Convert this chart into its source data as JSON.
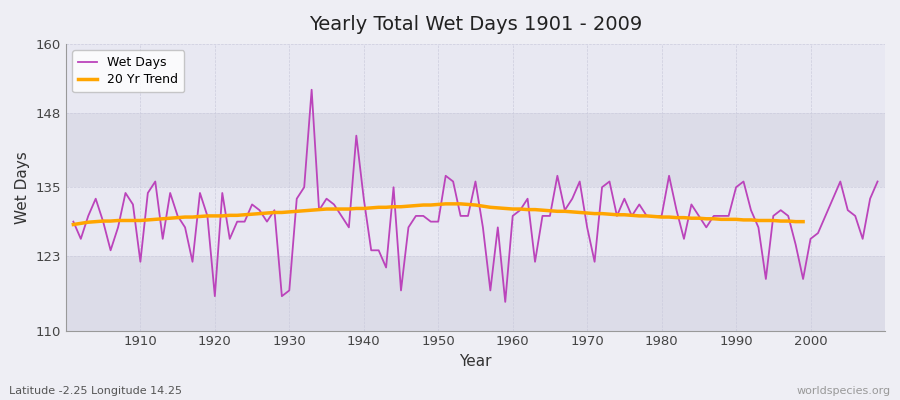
{
  "title": "Yearly Total Wet Days 1901 - 2009",
  "xlabel": "Year",
  "ylabel": "Wet Days",
  "subtitle": "Latitude -2.25 Longitude 14.25",
  "watermark": "worldspecies.org",
  "ylim": [
    110,
    160
  ],
  "yticks": [
    110,
    123,
    135,
    148,
    160
  ],
  "years": [
    1901,
    1902,
    1903,
    1904,
    1905,
    1906,
    1907,
    1908,
    1909,
    1910,
    1911,
    1912,
    1913,
    1914,
    1915,
    1916,
    1917,
    1918,
    1919,
    1920,
    1921,
    1922,
    1923,
    1924,
    1925,
    1926,
    1927,
    1928,
    1929,
    1930,
    1931,
    1932,
    1933,
    1934,
    1935,
    1936,
    1937,
    1938,
    1939,
    1940,
    1941,
    1942,
    1943,
    1944,
    1945,
    1946,
    1947,
    1948,
    1949,
    1950,
    1951,
    1952,
    1953,
    1954,
    1955,
    1956,
    1957,
    1958,
    1959,
    1960,
    1961,
    1962,
    1963,
    1964,
    1965,
    1966,
    1967,
    1968,
    1969,
    1970,
    1971,
    1972,
    1973,
    1974,
    1975,
    1976,
    1977,
    1978,
    1979,
    1980,
    1981,
    1982,
    1983,
    1984,
    1985,
    1986,
    1987,
    1988,
    1989,
    1990,
    1991,
    1992,
    1993,
    1994,
    1995,
    1996,
    1997,
    1998,
    1999,
    2000,
    2001,
    2002,
    2003,
    2004,
    2005,
    2006,
    2007,
    2008,
    2009
  ],
  "wet_days": [
    129,
    126,
    130,
    133,
    129,
    124,
    128,
    134,
    132,
    122,
    134,
    136,
    126,
    134,
    130,
    128,
    122,
    134,
    130,
    116,
    134,
    126,
    129,
    129,
    132,
    131,
    129,
    131,
    116,
    117,
    133,
    135,
    152,
    131,
    133,
    132,
    130,
    128,
    144,
    133,
    124,
    124,
    121,
    135,
    117,
    128,
    130,
    130,
    129,
    129,
    137,
    136,
    130,
    130,
    136,
    128,
    117,
    128,
    115,
    130,
    131,
    133,
    122,
    130,
    130,
    137,
    131,
    133,
    136,
    128,
    122,
    135,
    136,
    130,
    133,
    130,
    132,
    130,
    130,
    130,
    137,
    131,
    126,
    132,
    130,
    128,
    130,
    130,
    130,
    135,
    136,
    131,
    128,
    119,
    130,
    131,
    130,
    125,
    119,
    126,
    127,
    130,
    133,
    136,
    131,
    130,
    126,
    133,
    136
  ],
  "trend": [
    128.5,
    128.7,
    128.9,
    129.0,
    129.1,
    129.1,
    129.2,
    129.2,
    129.2,
    129.2,
    129.3,
    129.4,
    129.5,
    129.6,
    129.7,
    129.8,
    129.8,
    129.9,
    130.0,
    130.0,
    130.0,
    130.1,
    130.1,
    130.2,
    130.3,
    130.4,
    130.5,
    130.6,
    130.6,
    130.7,
    130.8,
    130.9,
    131.0,
    131.1,
    131.2,
    131.2,
    131.2,
    131.2,
    131.3,
    131.3,
    131.4,
    131.5,
    131.5,
    131.6,
    131.6,
    131.7,
    131.8,
    131.9,
    131.9,
    132.0,
    132.1,
    132.1,
    132.1,
    132.0,
    131.9,
    131.7,
    131.5,
    131.4,
    131.3,
    131.2,
    131.2,
    131.1,
    131.1,
    131.0,
    130.9,
    130.8,
    130.8,
    130.7,
    130.6,
    130.5,
    130.4,
    130.4,
    130.3,
    130.2,
    130.2,
    130.1,
    130.0,
    130.0,
    129.9,
    129.8,
    129.8,
    129.7,
    129.7,
    129.6,
    129.6,
    129.5,
    129.5,
    129.4,
    129.4,
    129.4,
    129.3,
    129.3,
    129.2,
    129.2,
    129.2,
    129.1,
    129.1,
    129.0,
    129.0
  ],
  "wet_days_color": "#BB44BB",
  "trend_color": "#FFA500",
  "bg_color_light": "#EEEEF4",
  "bg_color_dark": "#E0E0EA",
  "grid_color": "#CCCCDD",
  "legend_wet_label": "Wet Days",
  "legend_trend_label": "20 Yr Trend",
  "band_ranges": [
    [
      110,
      123
    ],
    [
      123,
      135
    ],
    [
      135,
      148
    ],
    [
      148,
      160
    ]
  ],
  "band_colors": [
    "#DCDCE8",
    "#E8E8F2",
    "#DCDCE8",
    "#E8E8F2"
  ]
}
